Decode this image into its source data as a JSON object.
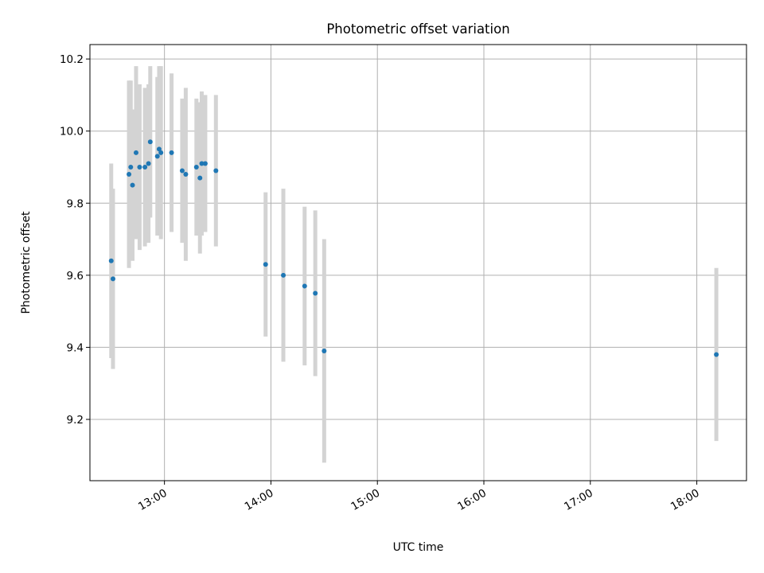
{
  "chart_data": {
    "type": "scatter",
    "title": "Photometric offset variation",
    "xlabel": "UTC time",
    "ylabel": "Photometric offset",
    "grid": true,
    "xlim": [
      "12:18",
      "18:28"
    ],
    "ylim": [
      9.03,
      10.24
    ],
    "x_ticks": [
      "13:00",
      "14:00",
      "15:00",
      "16:00",
      "17:00",
      "18:00"
    ],
    "y_ticks": [
      9.2,
      9.4,
      9.6,
      9.8,
      10.0,
      10.2
    ],
    "y_tick_labels": [
      "9.2",
      "9.4",
      "9.6",
      "9.8",
      "10.0",
      "10.2"
    ],
    "point_color": "#1f77b4",
    "errorbar_color": "#d3d3d3",
    "points": [
      {
        "x": "12:30",
        "y": 9.64,
        "yerr": 0.27
      },
      {
        "x": "12:31",
        "y": 9.59,
        "yerr": 0.25
      },
      {
        "x": "12:40",
        "y": 9.88,
        "yerr": 0.26
      },
      {
        "x": "12:41",
        "y": 9.9,
        "yerr": 0.24
      },
      {
        "x": "12:42",
        "y": 9.85,
        "yerr": 0.21
      },
      {
        "x": "12:44",
        "y": 9.94,
        "yerr": 0.24
      },
      {
        "x": "12:46",
        "y": 9.9,
        "yerr": 0.23
      },
      {
        "x": "12:49",
        "y": 9.9,
        "yerr": 0.22
      },
      {
        "x": "12:51",
        "y": 9.91,
        "yerr": 0.22
      },
      {
        "x": "12:52",
        "y": 9.97,
        "yerr": 0.21
      },
      {
        "x": "12:56",
        "y": 9.93,
        "yerr": 0.22
      },
      {
        "x": "12:57",
        "y": 9.95,
        "yerr": 0.23
      },
      {
        "x": "12:58",
        "y": 9.94,
        "yerr": 0.24
      },
      {
        "x": "13:04",
        "y": 9.94,
        "yerr": 0.22
      },
      {
        "x": "13:10",
        "y": 9.89,
        "yerr": 0.2
      },
      {
        "x": "13:12",
        "y": 9.88,
        "yerr": 0.24
      },
      {
        "x": "13:18",
        "y": 9.9,
        "yerr": 0.19
      },
      {
        "x": "13:20",
        "y": 9.87,
        "yerr": 0.21
      },
      {
        "x": "13:21",
        "y": 9.91,
        "yerr": 0.2
      },
      {
        "x": "13:23",
        "y": 9.91,
        "yerr": 0.19
      },
      {
        "x": "13:29",
        "y": 9.89,
        "yerr": 0.21
      },
      {
        "x": "13:57",
        "y": 9.63,
        "yerr": 0.2
      },
      {
        "x": "14:07",
        "y": 9.6,
        "yerr": 0.24
      },
      {
        "x": "14:19",
        "y": 9.57,
        "yerr": 0.22
      },
      {
        "x": "14:25",
        "y": 9.55,
        "yerr": 0.23
      },
      {
        "x": "14:30",
        "y": 9.39,
        "yerr": 0.31
      },
      {
        "x": "18:11",
        "y": 9.38,
        "yerr": 0.24
      }
    ]
  }
}
